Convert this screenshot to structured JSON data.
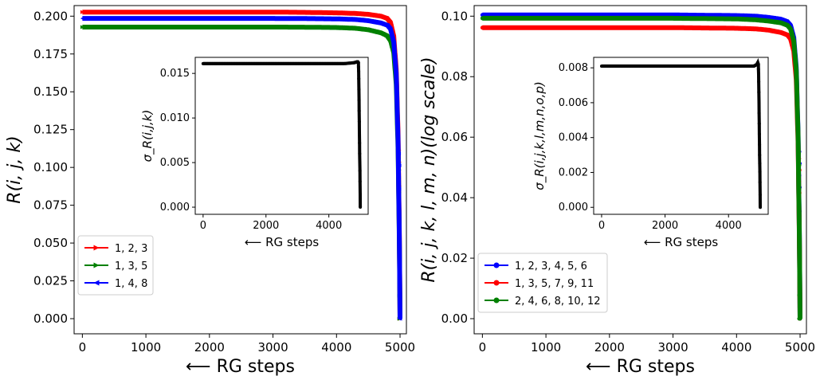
{
  "chart_data": [
    {
      "type": "line",
      "xlabel": "⟵ RG steps",
      "ylabel": "R(i, j, k)",
      "xlim": [
        -130,
        5100
      ],
      "ylim": [
        -0.01,
        0.207
      ],
      "x_ticks": [
        "0",
        "1000",
        "2000",
        "3000",
        "4000",
        "5000"
      ],
      "y_ticks": [
        "0.000",
        "0.025",
        "0.050",
        "0.075",
        "0.100",
        "0.125",
        "0.150",
        "0.175",
        "0.200"
      ],
      "legend_position": "lower-left",
      "series": [
        {
          "name": "1, 2, 3",
          "color": "#ff0000",
          "marker": "triangle-right",
          "plateau": 0.2027,
          "x": [
            0,
            500,
            1000,
            1500,
            2000,
            2500,
            3000,
            3500,
            4000,
            4300,
            4500,
            4700,
            4800,
            4850,
            4900,
            4940,
            4970,
            4990,
            5000
          ],
          "y": [
            0.2027,
            0.2027,
            0.2027,
            0.2027,
            0.2027,
            0.2027,
            0.2027,
            0.2025,
            0.2022,
            0.2018,
            0.2012,
            0.2,
            0.1985,
            0.196,
            0.187,
            0.165,
            0.12,
            0.05,
            0.0
          ]
        },
        {
          "name": "1, 3, 5",
          "color": "#008000",
          "marker": "triangle-right",
          "plateau": 0.1928,
          "x": [
            0,
            500,
            1000,
            1500,
            2000,
            2500,
            3000,
            3500,
            4000,
            4300,
            4500,
            4700,
            4800,
            4850,
            4900,
            4940,
            4970,
            4990,
            5000
          ],
          "y": [
            0.1928,
            0.1928,
            0.1928,
            0.1928,
            0.1928,
            0.1928,
            0.1928,
            0.1927,
            0.1925,
            0.192,
            0.191,
            0.189,
            0.187,
            0.184,
            0.176,
            0.155,
            0.11,
            0.045,
            0.0
          ]
        },
        {
          "name": "1, 4, 8",
          "color": "#0000ff",
          "marker": "triangle-left",
          "plateau": 0.1985,
          "x": [
            0,
            500,
            1000,
            1500,
            2000,
            2500,
            3000,
            3500,
            4000,
            4300,
            4500,
            4700,
            4800,
            4850,
            4900,
            4940,
            4970,
            4990,
            5000
          ],
          "y": [
            0.1985,
            0.1985,
            0.1985,
            0.1985,
            0.1985,
            0.1985,
            0.1985,
            0.1984,
            0.1982,
            0.1978,
            0.197,
            0.1955,
            0.194,
            0.1915,
            0.183,
            0.162,
            0.115,
            0.048,
            0.0
          ]
        }
      ],
      "inset": {
        "type": "line",
        "xlabel": "⟵ RG steps",
        "ylabel": "σ_R(i,j,k)",
        "xlim": [
          -250,
          5250
        ],
        "ylim": [
          -0.0008,
          0.0168
        ],
        "x_ticks": [
          "0",
          "2000",
          "4000"
        ],
        "y_ticks": [
          "0.000",
          "0.005",
          "0.010",
          "0.015"
        ],
        "series": [
          {
            "name": "",
            "color": "#000000",
            "x": [
              0,
              1000,
              2000,
              3000,
              4000,
              4500,
              4800,
              4900,
              4920,
              4940,
              4950,
              4960,
              4970,
              4980,
              4990,
              5000
            ],
            "y": [
              0.0161,
              0.0161,
              0.0161,
              0.0161,
              0.0161,
              0.0161,
              0.0162,
              0.0163,
              0.0163,
              0.0162,
              0.015,
              0.012,
              0.009,
              0.006,
              0.0036,
              0.0
            ]
          }
        ]
      }
    },
    {
      "type": "line",
      "xlabel": "⟵ RG steps",
      "ylabel": "R(i, j, k, l, m, n)(log scale)",
      "xlim": [
        -130,
        5100
      ],
      "ylim": [
        -0.005,
        0.1035
      ],
      "x_ticks": [
        "0",
        "1000",
        "2000",
        "3000",
        "4000",
        "5000"
      ],
      "y_ticks": [
        "0.00",
        "0.02",
        "0.04",
        "0.06",
        "0.08",
        "0.10"
      ],
      "legend_position": "lower-left",
      "series": [
        {
          "name": "1, 2, 3, 4, 5, 6",
          "color": "#0000ff",
          "marker": "dot",
          "plateau": 0.1004,
          "x": [
            0,
            500,
            1000,
            1500,
            2000,
            2500,
            3000,
            3500,
            4000,
            4300,
            4500,
            4700,
            4800,
            4850,
            4900,
            4940,
            4970,
            4990,
            5000
          ],
          "y": [
            0.1004,
            0.1004,
            0.1004,
            0.1004,
            0.1004,
            0.1004,
            0.1004,
            0.1003,
            0.1002,
            0.1,
            0.0996,
            0.099,
            0.0982,
            0.097,
            0.093,
            0.083,
            0.06,
            0.025,
            0.0
          ]
        },
        {
          "name": "1, 3, 5, 7, 9, 11",
          "color": "#ff0000",
          "marker": "dot",
          "plateau": 0.0962,
          "x": [
            0,
            500,
            1000,
            1500,
            2000,
            2500,
            3000,
            3500,
            4000,
            4300,
            4500,
            4700,
            4800,
            4850,
            4900,
            4940,
            4970,
            4990,
            5000
          ],
          "y": [
            0.0962,
            0.0962,
            0.0962,
            0.0962,
            0.0962,
            0.0962,
            0.0962,
            0.0961,
            0.096,
            0.0958,
            0.0954,
            0.0946,
            0.0938,
            0.0925,
            0.0885,
            0.079,
            0.057,
            0.023,
            0.0
          ]
        },
        {
          "name": "2, 4, 6, 8, 10, 12",
          "color": "#008000",
          "marker": "dot",
          "plateau": 0.0993,
          "x": [
            0,
            500,
            1000,
            1500,
            2000,
            2500,
            3000,
            3500,
            4000,
            4300,
            4500,
            4700,
            4800,
            4850,
            4900,
            4940,
            4970,
            4990,
            5000
          ],
          "y": [
            0.0993,
            0.0993,
            0.0993,
            0.0993,
            0.0993,
            0.0993,
            0.0993,
            0.0992,
            0.0991,
            0.0988,
            0.0984,
            0.0978,
            0.097,
            0.0958,
            0.0918,
            0.082,
            0.059,
            0.024,
            0.0
          ]
        }
      ],
      "inset": {
        "type": "line",
        "xlabel": "⟵ RG steps",
        "ylabel": "σ_R(i,j,k,l,m,n,o,p)",
        "xlim": [
          -250,
          5250
        ],
        "ylim": [
          -0.0004,
          0.0086
        ],
        "x_ticks": [
          "0",
          "2000",
          "4000"
        ],
        "y_ticks": [
          "0.000",
          "0.002",
          "0.004",
          "0.006",
          "0.008"
        ],
        "series": [
          {
            "name": "",
            "color": "#000000",
            "x": [
              0,
              1000,
              2000,
              3000,
              4000,
              4500,
              4800,
              4900,
              4920,
              4940,
              4950,
              4960,
              4970,
              4980,
              4990,
              5000
            ],
            "y": [
              0.0081,
              0.0081,
              0.0081,
              0.0081,
              0.0081,
              0.0081,
              0.0081,
              0.0082,
              0.0083,
              0.0082,
              0.0075,
              0.006,
              0.0045,
              0.003,
              0.0018,
              0.0
            ]
          }
        ]
      }
    }
  ]
}
